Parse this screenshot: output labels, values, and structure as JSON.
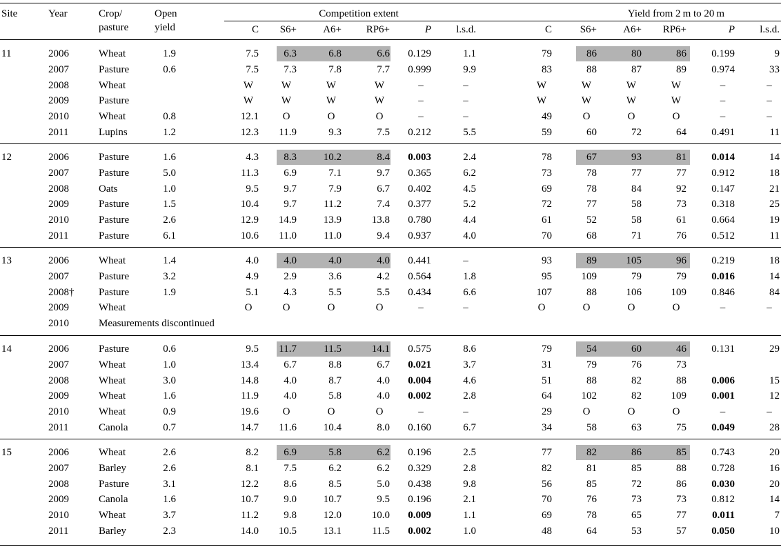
{
  "headers": {
    "site": "Site",
    "year": "Year",
    "crop_line1": "Crop/",
    "crop_line2": "pasture",
    "open_line1": "Open",
    "open_line2": "yield",
    "competition_extent": "Competition extent",
    "yield_from": "Yield from 2 m to 20 m",
    "c": "C",
    "s6": "S6+",
    "a6": "A6+",
    "rp6": "RP6+",
    "p": "P",
    "lsd": "l.s.d."
  },
  "sites": [
    {
      "site": "11",
      "rows": [
        {
          "year": "2006",
          "crop": "Wheat",
          "open": "1.9",
          "ce": [
            "7.5",
            "6.3",
            "6.8",
            "6.6",
            "0.129",
            "1.1"
          ],
          "y": [
            "79",
            "86",
            "80",
            "86",
            "0.199",
            "9"
          ],
          "ceBold": false,
          "yBold": false,
          "shade": true
        },
        {
          "year": "2007",
          "crop": "Pasture",
          "open": "0.6",
          "ce": [
            "7.5",
            "7.3",
            "7.8",
            "7.7",
            "0.999",
            "9.9"
          ],
          "y": [
            "83",
            "88",
            "87",
            "89",
            "0.974",
            "33"
          ],
          "ceBold": false,
          "yBold": false
        },
        {
          "year": "2008",
          "crop": "Wheat",
          "open": "",
          "ce": [
            "W",
            "W",
            "W",
            "W",
            "–",
            "–"
          ],
          "y": [
            "W",
            "W",
            "W",
            "W",
            "–",
            "–"
          ],
          "ceBold": false,
          "yBold": false
        },
        {
          "year": "2009",
          "crop": "Pasture",
          "open": "",
          "ce": [
            "W",
            "W",
            "W",
            "W",
            "–",
            "–"
          ],
          "y": [
            "W",
            "W",
            "W",
            "W",
            "–",
            "–"
          ],
          "ceBold": false,
          "yBold": false
        },
        {
          "year": "2010",
          "crop": "Wheat",
          "open": "0.8",
          "ce": [
            "12.1",
            "O",
            "O",
            "O",
            "–",
            "–"
          ],
          "y": [
            "49",
            "O",
            "O",
            "O",
            "–",
            "–"
          ],
          "ceBold": false,
          "yBold": false
        },
        {
          "year": "2011",
          "crop": "Lupins",
          "open": "1.2",
          "ce": [
            "12.3",
            "11.9",
            "9.3",
            "7.5",
            "0.212",
            "5.5"
          ],
          "y": [
            "59",
            "60",
            "72",
            "64",
            "0.491",
            "11"
          ],
          "ceBold": false,
          "yBold": false
        }
      ]
    },
    {
      "site": "12",
      "rows": [
        {
          "year": "2006",
          "crop": "Pasture",
          "open": "1.6",
          "ce": [
            "4.3",
            "8.3",
            "10.2",
            "8.4",
            "0.003",
            "2.4"
          ],
          "y": [
            "78",
            "67",
            "93",
            "81",
            "0.014",
            "14"
          ],
          "ceBold": true,
          "yBold": true,
          "shade": true
        },
        {
          "year": "2007",
          "crop": "Pasture",
          "open": "5.0",
          "ce": [
            "11.3",
            "6.9",
            "7.1",
            "9.7",
            "0.365",
            "6.2"
          ],
          "y": [
            "73",
            "78",
            "77",
            "77",
            "0.912",
            "18"
          ],
          "ceBold": false,
          "yBold": false
        },
        {
          "year": "2008",
          "crop": "Oats",
          "open": "1.0",
          "ce": [
            "9.5",
            "9.7",
            "7.9",
            "6.7",
            "0.402",
            "4.5"
          ],
          "y": [
            "69",
            "78",
            "84",
            "92",
            "0.147",
            "21"
          ],
          "ceBold": false,
          "yBold": false
        },
        {
          "year": "2009",
          "crop": "Pasture",
          "open": "1.5",
          "ce": [
            "10.4",
            "9.7",
            "11.2",
            "7.4",
            "0.377",
            "5.2"
          ],
          "y": [
            "72",
            "77",
            "58",
            "73",
            "0.318",
            "25"
          ],
          "ceBold": false,
          "yBold": false
        },
        {
          "year": "2010",
          "crop": "Pasture",
          "open": "2.6",
          "ce": [
            "12.9",
            "14.9",
            "13.9",
            "13.8",
            "0.780",
            "4.4"
          ],
          "y": [
            "61",
            "52",
            "58",
            "61",
            "0.664",
            "19"
          ],
          "ceBold": false,
          "yBold": false
        },
        {
          "year": "2011",
          "crop": "Pasture",
          "open": "6.1",
          "ce": [
            "10.6",
            "11.0",
            "11.0",
            "9.4",
            "0.937",
            "4.0"
          ],
          "y": [
            "70",
            "68",
            "71",
            "76",
            "0.512",
            "11"
          ],
          "ceBold": false,
          "yBold": false
        }
      ]
    },
    {
      "site": "13",
      "rows": [
        {
          "year": "2006",
          "crop": "Wheat",
          "open": "1.4",
          "ce": [
            "4.0",
            "4.0",
            "4.0",
            "4.0",
            "0.441",
            "–"
          ],
          "y": [
            "93",
            "89",
            "105",
            "96",
            "0.219",
            "18"
          ],
          "ceBold": false,
          "yBold": false,
          "shade": true
        },
        {
          "year": "2007",
          "crop": "Pasture",
          "open": "3.2",
          "ce": [
            "4.9",
            "2.9",
            "3.6",
            "4.2",
            "0.564",
            "1.8"
          ],
          "y": [
            "95",
            "109",
            "79",
            "79",
            "0.016",
            "14"
          ],
          "ceBold": false,
          "yBold": true
        },
        {
          "year": "2008†",
          "crop": "Pasture",
          "open": "1.9",
          "ce": [
            "5.1",
            "4.3",
            "5.5",
            "5.5",
            "0.434",
            "6.6"
          ],
          "y": [
            "107",
            "88",
            "106",
            "109",
            "0.846",
            "84"
          ],
          "ceBold": false,
          "yBold": false
        },
        {
          "year": "2009",
          "crop": "Wheat",
          "open": "",
          "ce": [
            "O",
            "O",
            "O",
            "O",
            "–",
            "–"
          ],
          "y": [
            "O",
            "O",
            "O",
            "O",
            "–",
            "–"
          ],
          "ceBold": false,
          "yBold": false
        },
        {
          "year": "2010",
          "crop": "Measurements discontinued",
          "open": "",
          "note": true
        }
      ]
    },
    {
      "site": "14",
      "rows": [
        {
          "year": "2006",
          "crop": "Pasture",
          "open": "0.6",
          "ce": [
            "9.5",
            "11.7",
            "11.5",
            "14.1",
            "0.575",
            "8.6"
          ],
          "y": [
            "79",
            "54",
            "60",
            "46",
            "0.131",
            "29"
          ],
          "ceBold": false,
          "yBold": false,
          "shade": true
        },
        {
          "year": "2007",
          "crop": "Wheat",
          "open": "1.0",
          "ce": [
            "13.4",
            "6.7",
            "8.8",
            "6.7",
            "0.021",
            "3.7"
          ],
          "y": [
            "31",
            "79",
            "76",
            "73",
            "",
            ""
          ],
          "ceBold": true,
          "yBold": false
        },
        {
          "year": "2008",
          "crop": "Wheat",
          "open": "3.0",
          "ce": [
            "14.8",
            "4.0",
            "8.7",
            "4.0",
            "0.004",
            "4.6"
          ],
          "y": [
            "51",
            "88",
            "82",
            "88",
            "0.006",
            "15"
          ],
          "ceBold": true,
          "yBold": true
        },
        {
          "year": "2009",
          "crop": "Wheat",
          "open": "1.6",
          "ce": [
            "11.9",
            "4.0",
            "5.8",
            "4.0",
            "0.002",
            "2.8"
          ],
          "y": [
            "64",
            "102",
            "82",
            "109",
            "0.001",
            "12"
          ],
          "ceBold": true,
          "yBold": true
        },
        {
          "year": "2010",
          "crop": "Wheat",
          "open": "0.9",
          "ce": [
            "19.6",
            "O",
            "O",
            "O",
            "–",
            "–"
          ],
          "y": [
            "29",
            "O",
            "O",
            "O",
            "–",
            "–"
          ],
          "ceBold": false,
          "yBold": false
        },
        {
          "year": "2011",
          "crop": "Canola",
          "open": "0.7",
          "ce": [
            "14.7",
            "11.6",
            "10.4",
            "8.0",
            "0.160",
            "6.7"
          ],
          "y": [
            "34",
            "58",
            "63",
            "75",
            "0.049",
            "28"
          ],
          "ceBold": false,
          "yBold": true
        }
      ]
    },
    {
      "site": "15",
      "rows": [
        {
          "year": "2006",
          "crop": "Wheat",
          "open": "2.6",
          "ce": [
            "8.2",
            "6.9",
            "5.8",
            "6.2",
            "0.196",
            "2.5"
          ],
          "y": [
            "77",
            "82",
            "86",
            "85",
            "0.743",
            "20"
          ],
          "ceBold": false,
          "yBold": false,
          "shade": true
        },
        {
          "year": "2007",
          "crop": "Barley",
          "open": "2.6",
          "ce": [
            "8.1",
            "7.5",
            "6.2",
            "6.2",
            "0.329",
            "2.8"
          ],
          "y": [
            "82",
            "81",
            "85",
            "88",
            "0.728",
            "16"
          ],
          "ceBold": false,
          "yBold": false
        },
        {
          "year": "2008",
          "crop": "Pasture",
          "open": "3.1",
          "ce": [
            "12.2",
            "8.6",
            "8.5",
            "5.0",
            "0.438",
            "9.8"
          ],
          "y": [
            "56",
            "85",
            "72",
            "86",
            "0.030",
            "20"
          ],
          "ceBold": false,
          "yBold": true
        },
        {
          "year": "2009",
          "crop": "Canola",
          "open": "1.6",
          "ce": [
            "10.7",
            "9.0",
            "10.7",
            "9.5",
            "0.196",
            "2.1"
          ],
          "y": [
            "70",
            "76",
            "73",
            "73",
            "0.812",
            "14"
          ],
          "ceBold": false,
          "yBold": false
        },
        {
          "year": "2010",
          "crop": "Wheat",
          "open": "3.7",
          "ce": [
            "11.2",
            "9.8",
            "12.0",
            "10.0",
            "0.009",
            "1.1"
          ],
          "y": [
            "69",
            "78",
            "65",
            "77",
            "0.011",
            "7"
          ],
          "ceBold": true,
          "yBold": true
        },
        {
          "year": "2011",
          "crop": "Barley",
          "open": "2.3",
          "ce": [
            "14.0",
            "10.5",
            "13.1",
            "11.5",
            "0.002",
            "1.0"
          ],
          "y": [
            "48",
            "64",
            "53",
            "57",
            "0.050",
            "10"
          ],
          "ceBold": true,
          "yBold": true
        }
      ]
    }
  ]
}
